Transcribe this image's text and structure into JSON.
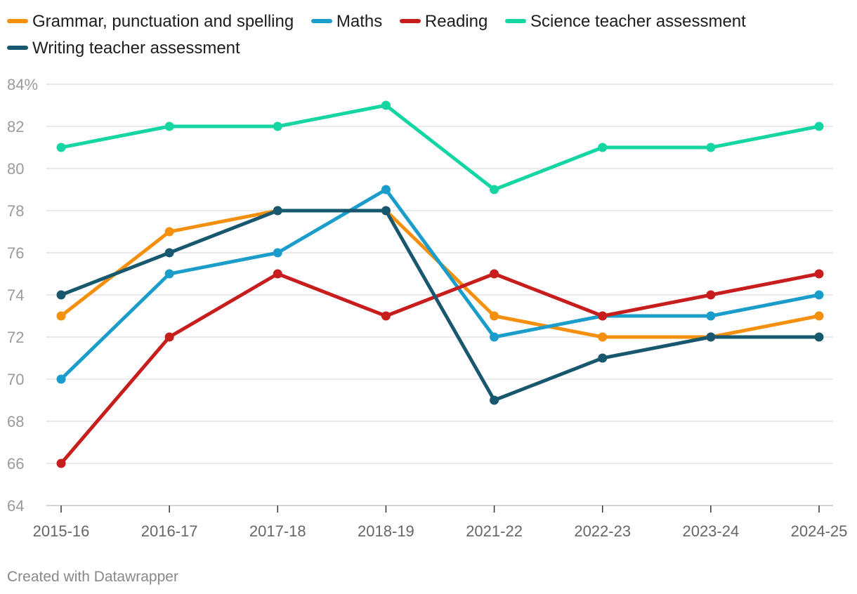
{
  "chart_data": {
    "type": "line",
    "categories": [
      "2015-16",
      "2016-17",
      "2017-18",
      "2018-19",
      "2021-22",
      "2022-23",
      "2023-24",
      "2024-25"
    ],
    "series": [
      {
        "name": "Grammar, punctuation and spelling",
        "color": "#f5900f",
        "values": [
          73,
          77,
          78,
          78,
          73,
          72,
          72,
          73
        ]
      },
      {
        "name": "Maths",
        "color": "#1b9dcb",
        "values": [
          70,
          75,
          76,
          79,
          72,
          73,
          73,
          74
        ]
      },
      {
        "name": "Reading",
        "color": "#c71e1d",
        "values": [
          66,
          72,
          75,
          73,
          75,
          73,
          74,
          75
        ]
      },
      {
        "name": "Science teacher assessment",
        "color": "#15d6a3",
        "values": [
          81,
          82,
          82,
          83,
          79,
          81,
          81,
          82
        ]
      },
      {
        "name": "Writing teacher assessment",
        "color": "#18586f",
        "values": [
          74,
          76,
          78,
          78,
          69,
          71,
          72,
          72
        ]
      }
    ],
    "ylim": [
      64,
      84
    ],
    "yticks": [
      "84%",
      "82",
      "80",
      "78",
      "76",
      "74",
      "72",
      "70",
      "68",
      "66",
      "64"
    ],
    "ytick_values": [
      84,
      82,
      80,
      78,
      76,
      74,
      72,
      70,
      68,
      66,
      64
    ],
    "grid": true,
    "legend_position": "top"
  },
  "footer": "Created with Datawrapper"
}
